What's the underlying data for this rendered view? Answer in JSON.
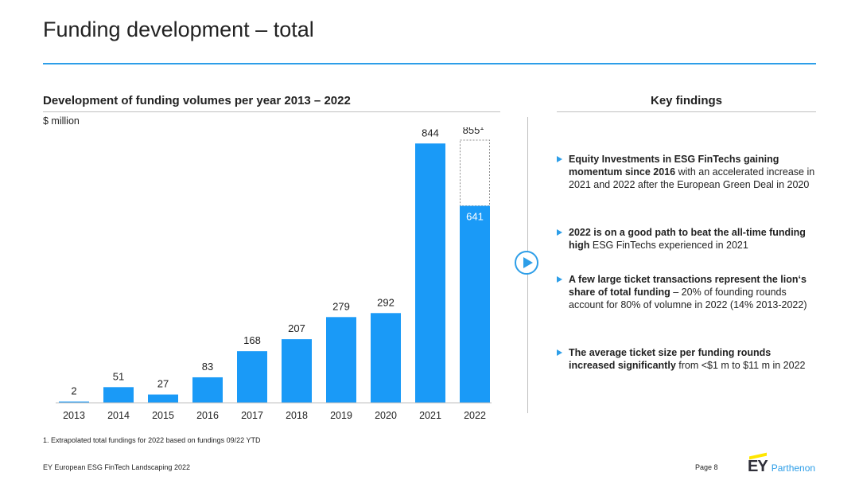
{
  "page": {
    "title": "Funding development – total",
    "footnote": "1. Extrapolated total fundings for 2022 based on fundings 09/22 YTD",
    "footer_left": "EY European ESG FinTech Landscaping 2022",
    "footer_page": "Page 8",
    "logo_ey": "EY",
    "logo_parthenon": "Parthenon",
    "colors": {
      "accent": "#2d9ee8",
      "bar": "#1a9af7",
      "logo_yellow": "#ffe600"
    }
  },
  "chart_heading": "Development of funding volumes per year 2013 – 2022",
  "chart_unit": "$ million",
  "chart_data": {
    "type": "bar",
    "title": "Development of funding volumes per year 2013 – 2022",
    "ylabel": "$ million",
    "categories": [
      "2013",
      "2014",
      "2015",
      "2016",
      "2017",
      "2018",
      "2019",
      "2020",
      "2021",
      "2022"
    ],
    "values": [
      2,
      51,
      27,
      83,
      168,
      207,
      279,
      292,
      844,
      641
    ],
    "labels": [
      "2",
      "51",
      "27",
      "83",
      "168",
      "207",
      "279",
      "292",
      "844",
      "641"
    ],
    "extrapolated": {
      "category": "2022",
      "total": 855,
      "label": "855",
      "footnote_marker": "1"
    },
    "ylim": [
      0,
      855
    ],
    "grid": false,
    "legend": "none"
  },
  "key_findings": {
    "heading": "Key findings",
    "items": [
      {
        "bold": "Equity Investments in ESG FinTechs gaining momentum since 2016",
        "text": " with an accelerated increase in 2021 and 2022 after the European Green Deal in 2020"
      },
      {
        "bold": "2022 is on a good path to beat the all-time funding high",
        "text": " ESG FinTechs experienced in 2021"
      },
      {
        "bold": "A few large ticket transactions represent the lion‘s share of total funding",
        "text": " – 20% of founding rounds account for 80% of volumne in 2022 (14% 2013-2022)"
      },
      {
        "bold": "The average ticket size per funding rounds increased significantly",
        "text": " from <$1 m to $11 m in 2022"
      }
    ]
  }
}
